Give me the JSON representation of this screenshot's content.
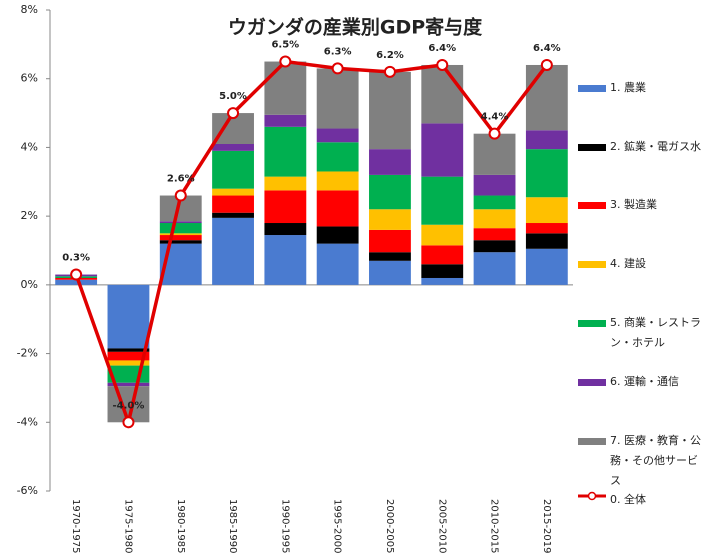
{
  "chart_data": {
    "type": "bar",
    "stacked": true,
    "title": "ウガンダの産業別GDP寄与度",
    "categories": [
      "1970-1975",
      "1975-1980",
      "1980-1985",
      "1985-1990",
      "1990-1995",
      "1995-2000",
      "2000-2005",
      "2005-2010",
      "2010-2015",
      "2015-2019"
    ],
    "ylim": [
      -6,
      8
    ],
    "yticks": [
      {
        "value": -6,
        "label": "-6%"
      },
      {
        "value": -4,
        "label": "-4%"
      },
      {
        "value": -2,
        "label": "-2%"
      },
      {
        "value": 0,
        "label": "0%"
      },
      {
        "value": 2,
        "label": "2%"
      },
      {
        "value": 4,
        "label": "4%"
      },
      {
        "value": 6,
        "label": "6%"
      },
      {
        "value": 8,
        "label": "8%"
      }
    ],
    "legend": "right",
    "series": [
      {
        "name": "1. 農業",
        "color": "#4a7bd0",
        "values": [
          0.15,
          -1.85,
          1.2,
          1.95,
          1.45,
          1.2,
          0.7,
          0.2,
          0.95,
          1.05
        ]
      },
      {
        "name": "2. 鉱業・電ガス水",
        "color": "#000000",
        "values": [
          0,
          -0.1,
          0.1,
          0.15,
          0.35,
          0.5,
          0.25,
          0.4,
          0.35,
          0.45
        ]
      },
      {
        "name": "3. 製造業",
        "color": "#ff0000",
        "values": [
          0.05,
          -0.25,
          0.15,
          0.5,
          0.95,
          1.05,
          0.65,
          0.55,
          0.35,
          0.3
        ]
      },
      {
        "name": "4. 建設",
        "color": "#ffc000",
        "values": [
          0,
          -0.15,
          0.05,
          0.2,
          0.4,
          0.55,
          0.6,
          0.6,
          0.55,
          0.75
        ]
      },
      {
        "name": "5. 商業・レストラン・ホテル",
        "color": "#00b050",
        "values": [
          0.05,
          -0.5,
          0.3,
          1.1,
          1.45,
          0.85,
          1.0,
          1.4,
          0.4,
          1.4
        ]
      },
      {
        "name": "6. 運輸・通信",
        "color": "#7030a0",
        "values": [
          0.05,
          -0.1,
          0.05,
          0.2,
          0.35,
          0.4,
          0.75,
          1.55,
          0.6,
          0.55
        ]
      },
      {
        "name": "7. 医療・教育・公務・その他サービス",
        "color": "#808080",
        "values": [
          0,
          -1.05,
          0.75,
          0.9,
          1.55,
          1.75,
          2.25,
          1.7,
          1.2,
          1.9
        ]
      },
      {
        "name": "0. 全体",
        "type": "line",
        "color": "#e00000",
        "values": [
          0.3,
          -4.0,
          2.6,
          5.0,
          6.5,
          6.3,
          6.2,
          6.4,
          4.4,
          6.4
        ],
        "value_labels": [
          "0.3%",
          "-4.0%",
          "2.6%",
          "5.0%",
          "6.5%",
          "6.3%",
          "6.2%",
          "6.4%",
          "4.4%",
          "6.4%"
        ]
      }
    ]
  }
}
